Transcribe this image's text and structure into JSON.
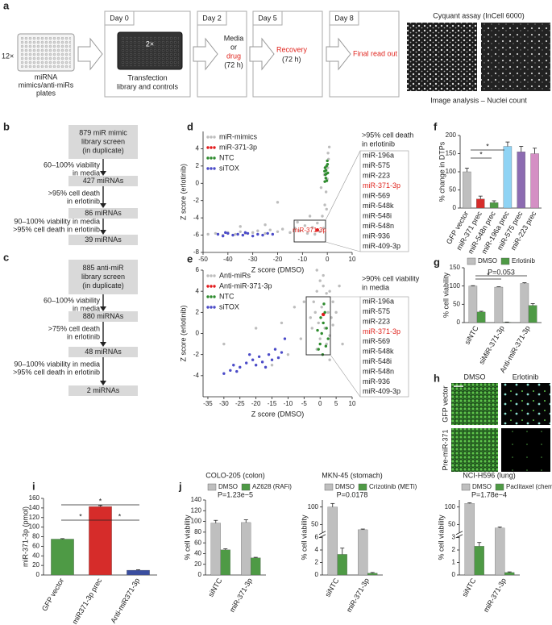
{
  "panel_labels": [
    "a",
    "b",
    "c",
    "d",
    "e",
    "f",
    "g",
    "h",
    "i",
    "j"
  ],
  "workflow": {
    "plates_count": "12×",
    "plate_label": [
      "miRNA",
      "mimics/anti-miRs",
      "plates"
    ],
    "days": [
      "Day 0",
      "Day 2",
      "Day 5",
      "Day 8"
    ],
    "plate_multiplier": "2×",
    "transfection": [
      "Transfection",
      "library and controls"
    ],
    "media": [
      "Media",
      "or",
      "drug",
      "(72 h)"
    ],
    "recovery": [
      "Recovery",
      "(72 h)"
    ],
    "final": "Final read out",
    "assay_title": "Cyquant assay (InCell 6000)",
    "analysis": "Image analysis – Nuclei count"
  },
  "flow_b": {
    "steps": [
      [
        "879 miR mimic",
        "library screen",
        "(in duplicate)"
      ],
      [
        "427 miRNAs"
      ],
      [
        "86 miRNAs"
      ],
      [
        "39 miRNAs"
      ]
    ],
    "conditions": [
      [
        "60–100% viability",
        "in media"
      ],
      [
        ">95% cell death",
        "in erlotinib"
      ],
      [
        "90–100% viability in media",
        ">95% cell death in erlotinib"
      ]
    ]
  },
  "flow_c": {
    "steps": [
      [
        "885 anti-miR",
        "library screen",
        "(in duplicate)"
      ],
      [
        "880 miRNAs"
      ],
      [
        "48 miRNAs"
      ],
      [
        "2 miRNAs"
      ]
    ],
    "conditions": [
      [
        "60–100% viability",
        "in media"
      ],
      [
        ">75% cell death",
        "in erlotinib"
      ],
      [
        "90–100% viability in media",
        ">95% cell death in erlotinib"
      ]
    ]
  },
  "h_panel": {
    "columns": [
      "DMSO",
      "Erlotinib"
    ],
    "rows": [
      "GFP vector",
      "Pre-miR-371"
    ]
  },
  "chart_data": [
    {
      "type": "scatter",
      "xlabel": "Z score (DMSO)",
      "ylabel": "Z score (erlotinib)",
      "xlim": [
        -50,
        10
      ],
      "xticks": [
        -50,
        -40,
        -30,
        -20,
        -10,
        0,
        10
      ],
      "ylim": [
        -8,
        6
      ],
      "yticks": [
        -8,
        -6,
        -4,
        -2,
        0,
        2,
        4
      ],
      "legend": "top-left",
      "annotation": "miR-371-3p",
      "callout_title": [
        ">95% cell death",
        "in erlotinib"
      ],
      "callout_items": [
        "miR-196a",
        "miR-575",
        "miR-223",
        "miR-371-3p",
        "miR-569",
        "miR-548k",
        "miR-548i",
        "miR-548n",
        "miR-936",
        "miR-409-3p"
      ],
      "callout_highlight": 3,
      "series": [
        {
          "name": "miR-mimics",
          "color": "#bdbdbd",
          "x": [
            -48,
            -45,
            -42,
            -40,
            -37,
            -35,
            -33,
            -30,
            -28,
            -25,
            -23,
            -20,
            -18,
            -15,
            -13,
            -11,
            -9,
            -8,
            -6,
            -5,
            -4,
            -3,
            -2,
            -1.5,
            -1,
            -0.5,
            0,
            0.2,
            0.5,
            0.3,
            0.8,
            -0.3,
            -25,
            -35,
            -12,
            -20,
            -7,
            -2.5,
            -1.2
          ],
          "y": [
            -5.9,
            -5.8,
            -6,
            -5.7,
            -5.9,
            -5.6,
            -5.8,
            -5.7,
            -5.5,
            -5.8,
            -5.4,
            -5.6,
            -5.3,
            -5.7,
            -5.2,
            -5.5,
            -4.9,
            -5.8,
            -5.1,
            -5.9,
            -4.6,
            -5.6,
            -3.8,
            -5.2,
            -2.5,
            -1,
            0.5,
            1.8,
            2.8,
            3.5,
            4.2,
            -3,
            -4.8,
            -5,
            -4.5,
            -2.2,
            -3.8,
            -0.5,
            1
          ]
        },
        {
          "name": "miR-371-3p",
          "color": "#e31a1c",
          "x": [
            -4
          ],
          "y": [
            -5.4
          ]
        },
        {
          "name": "NTC",
          "color": "#2e8b2e",
          "x": [
            -1,
            -0.8,
            -0.5,
            -0.3,
            0,
            -0.6,
            0.2,
            -0.2,
            -0.9,
            0.1,
            -0.4,
            -1.1
          ],
          "y": [
            0.2,
            1,
            1.5,
            2,
            2.6,
            0.6,
            1.2,
            0.3,
            1.8,
            2.2,
            1.1,
            1.4
          ]
        },
        {
          "name": "siTOX",
          "color": "#4b4bc8",
          "x": [
            -44,
            -42,
            -40,
            -38,
            -36,
            -34,
            -32,
            -30,
            -28,
            -26,
            -24,
            -22,
            -41,
            -33
          ],
          "y": [
            -5.9,
            -6.1,
            -5.8,
            -6,
            -5.9,
            -6,
            -5.8,
            -6.1,
            -5.9,
            -6,
            -5.8,
            -5.9,
            -5.7,
            -5.7
          ]
        }
      ]
    },
    {
      "type": "scatter",
      "xlabel": "Z score (DMSO)",
      "ylabel": "Z score (erlotinib)",
      "xlim": [
        -36.5,
        10
      ],
      "xticks": [
        -35,
        -30,
        -25,
        -20,
        -15,
        -10,
        -5,
        0,
        5,
        10
      ],
      "ylim": [
        -6,
        6
      ],
      "yticks": [
        -4,
        -2,
        0,
        2,
        4,
        6
      ],
      "legend": "top-left",
      "callout_title": [
        ">90% cell viability",
        "in media"
      ],
      "callout_items": [
        "miR-196a",
        "miR-575",
        "miR-223",
        "miR-371-3p",
        "miR-569",
        "miR-548k",
        "miR-548i",
        "miR-548n",
        "miR-936",
        "miR-409-3p"
      ],
      "callout_highlight": 3,
      "series": [
        {
          "name": "Anti-miRs",
          "color": "#bdbdbd",
          "x": [
            -2,
            -1,
            0,
            1,
            2,
            3,
            4,
            -1.5,
            0.5,
            2.5,
            3.5,
            -0.5,
            1.5,
            4,
            -2.5,
            0,
            2,
            -1,
            3,
            1,
            -3,
            5,
            -5,
            -8,
            -12,
            -20,
            -30,
            -10,
            7,
            6,
            -1,
            -6,
            3,
            -15
          ],
          "y": [
            3,
            4,
            5,
            4.5,
            3.8,
            4,
            3,
            2,
            2.5,
            2,
            1.5,
            1,
            0.5,
            0.8,
            0.5,
            -0.5,
            -1,
            -1.5,
            -0.2,
            5.5,
            1.5,
            2,
            3,
            2.5,
            1,
            0.5,
            -1,
            -2,
            -1,
            4.5,
            6,
            -0.5,
            -2.5,
            -3
          ]
        },
        {
          "name": "Anti-miR-371-3p",
          "color": "#e31a1c",
          "x": [
            1
          ],
          "y": [
            1.8
          ]
        },
        {
          "name": "NTC",
          "color": "#2e8b2e",
          "x": [
            -0.5,
            0,
            0.5,
            1,
            1.5,
            2,
            0.8,
            1.2,
            0.2,
            -0.8,
            2.5,
            1.8
          ],
          "y": [
            -1.5,
            -1,
            0,
            1,
            2,
            0.5,
            -2,
            2.8,
            1.5,
            0.3,
            -0.5,
            -1.2
          ]
        },
        {
          "name": "siTOX",
          "color": "#4b4bc8",
          "x": [
            -30,
            -28,
            -27,
            -25,
            -23,
            -21,
            -20,
            -19,
            -18,
            -16,
            -15,
            -14,
            -13,
            -12,
            -11,
            -26,
            -22,
            -17
          ],
          "y": [
            -3.8,
            -3.5,
            -3,
            -3.2,
            -2.8,
            -2.5,
            -3,
            -2.2,
            -2.7,
            -2,
            -2.5,
            -1.5,
            -2.3,
            -1.8,
            -0.5,
            -3.6,
            -2,
            -3.2
          ]
        }
      ]
    },
    {
      "type": "bar",
      "ylabel": "% change in DTPs",
      "categories": [
        "GFP vector",
        "miR-371 prec",
        "miR-548n prec",
        "miR-196a prec",
        "miR-575 prec",
        "miR-223 prec"
      ],
      "values": [
        100,
        25,
        15,
        170,
        155,
        150
      ],
      "errors": [
        10,
        8,
        5,
        12,
        15,
        15
      ],
      "colors": [
        "#bfbfbf",
        "#d62c2a",
        "#4e9a45",
        "#8fd3f4",
        "#8c6bb1",
        "#d48fc4"
      ],
      "ylim": [
        0,
        200
      ],
      "yticks": [
        0,
        50,
        100,
        150,
        200
      ],
      "annotations": [
        "*",
        "*"
      ]
    },
    {
      "type": "bar",
      "ylabel": "% cell viability",
      "categories": [
        "siNTC",
        "siMiR-371-3p",
        "Anti-miR-371-3p"
      ],
      "series": [
        {
          "name": "DMSO",
          "color": "#bfbfbf",
          "values": [
            100,
            97,
            107
          ],
          "errors": [
            1,
            1,
            2
          ]
        },
        {
          "name": "Erlotinib",
          "color": "#4e9a45",
          "values": [
            29,
            1,
            47
          ],
          "errors": [
            2,
            0.5,
            5
          ]
        }
      ],
      "ylim": [
        0,
        150
      ],
      "yticks": [
        0,
        50,
        100,
        150
      ],
      "legend": "top-left",
      "annotations": [
        "*",
        "P=0.053"
      ]
    },
    {
      "type": "bar",
      "ylabel": "miR-371-3p (pmol)",
      "categories": [
        "GFP vector",
        "miR371-3p prec",
        "Anti-miR371-3p"
      ],
      "values": [
        75,
        143,
        10
      ],
      "errors": [
        1,
        2,
        1
      ],
      "colors": [
        "#4e9a45",
        "#d62c2a",
        "#3a4ea0"
      ],
      "ylim": [
        0,
        160
      ],
      "yticks": [
        0,
        20,
        40,
        60,
        80,
        100,
        120,
        140,
        160
      ],
      "annotations": [
        "*",
        "*",
        "*"
      ]
    },
    {
      "type": "bar",
      "title": "COLO-205 (colon)",
      "ylabel": "% cell viability",
      "categories": [
        "siNTC",
        "miR-371-3p"
      ],
      "series": [
        {
          "name": "DMSO",
          "color": "#bfbfbf",
          "values": [
            97,
            98
          ],
          "errors": [
            5,
            5
          ]
        },
        {
          "name": "AZ628 (RAFi)",
          "color": "#4e9a45",
          "values": [
            47,
            32
          ],
          "errors": [
            2,
            1
          ]
        }
      ],
      "ylim": [
        0,
        140
      ],
      "yticks": [
        0,
        20,
        40,
        60,
        80,
        100,
        120,
        140
      ],
      "legend": "top-left",
      "annotations": [
        "P=1.23e−5"
      ]
    },
    {
      "type": "bar",
      "title": "MKN-45 (stomach)",
      "ylabel": "% cell viability",
      "categories": [
        "siNTC",
        "miR-371-3p"
      ],
      "series": [
        {
          "name": "DMSO",
          "color": "#bfbfbf",
          "values": [
            100,
            35
          ],
          "errors": [
            10,
            2
          ]
        },
        {
          "name": "Crizotinib (METi)",
          "color": "#4e9a45",
          "values": [
            3.3,
            0.3
          ],
          "errors": [
            1,
            0.1
          ]
        }
      ],
      "ylim": [
        0,
        120
      ],
      "yticks": [
        0,
        2,
        4,
        6,
        50,
        100
      ],
      "axis_break": [
        6,
        30
      ],
      "legend": "top-left",
      "annotations": [
        "P=0.0178"
      ]
    },
    {
      "type": "bar",
      "title": "NCI-H596 (lung)",
      "ylabel": "% cell viability",
      "categories": [
        "siNTC",
        "miR-371-3p"
      ],
      "series": [
        {
          "name": "DMSO",
          "color": "#bfbfbf",
          "values": [
            110,
            40
          ],
          "errors": [
            2,
            3
          ]
        },
        {
          "name": "Paclitaxel (chemo)",
          "color": "#4e9a45",
          "values": [
            2.3,
            0.2
          ],
          "errors": [
            0.3,
            0.05
          ]
        }
      ],
      "ylim": [
        0,
        120
      ],
      "yticks": [
        0,
        1,
        2,
        3,
        50,
        100
      ],
      "axis_break": [
        3,
        30
      ],
      "legend": "top-left",
      "annotations": [
        "P=1.78e−4"
      ]
    }
  ]
}
